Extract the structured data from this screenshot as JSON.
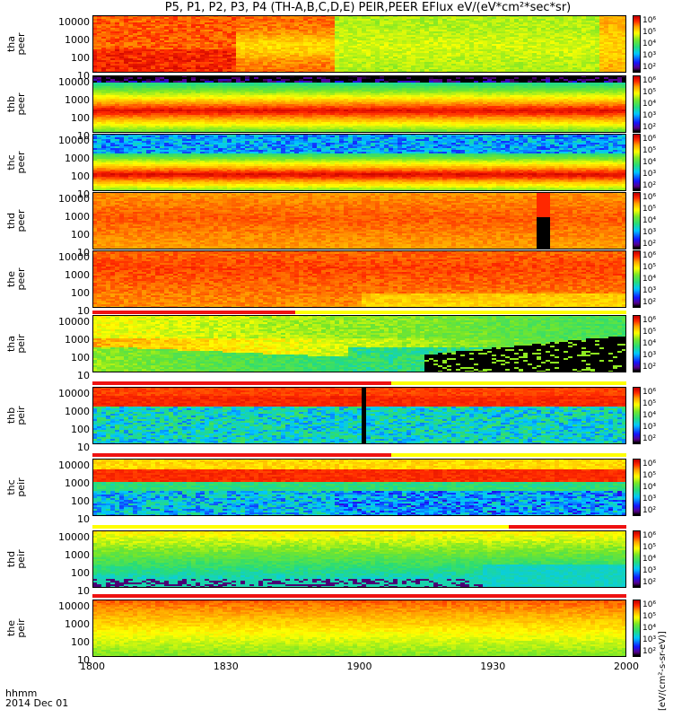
{
  "title": "P5, P1, P2, P3, P4 (TH-A,B,C,D,E) PEIR,PEER EFlux eV/(eV*cm²*sec*sr)",
  "footer": {
    "line1": "hhmm",
    "line2": "2014 Dec 01"
  },
  "colorbar_unit": "[eV/(cm²-s-sr-eV)]",
  "colors": {
    "black": "#000000",
    "blue": "#1a1aff",
    "cyan": "#00e0e0",
    "green": "#33dd33",
    "yellow": "#ffff00",
    "orange": "#ff9900",
    "red": "#ff2a00",
    "darkred": "#cc0000",
    "strip_red": "#ee1111",
    "strip_yellow": "#ffff00"
  },
  "chart_data": {
    "type": "heatmap",
    "xaxis": {
      "ticks": [
        "1800",
        "1830",
        "1900",
        "1930",
        "2000"
      ],
      "range_hhmm": [
        "1800",
        "2000"
      ]
    },
    "yaxis_log": true,
    "ytick_labels": [
      "10000",
      "1000",
      "100",
      "10"
    ],
    "colorbar_ticks": [
      "10⁶",
      "10⁵",
      "10⁴",
      "10³",
      "10²"
    ],
    "panels": [
      {
        "probe": "tha",
        "species": "peer",
        "label": "tha\npeer",
        "pattern": "peer_a"
      },
      {
        "probe": "thb",
        "species": "peer",
        "label": "thb\npeer",
        "pattern": "peer_b"
      },
      {
        "probe": "thc",
        "species": "peer",
        "label": "thc\npeer",
        "pattern": "peer_c"
      },
      {
        "probe": "thd",
        "species": "peer",
        "label": "thd\npeer",
        "pattern": "peer_d"
      },
      {
        "probe": "the",
        "species": "peer",
        "label": "the\npeer",
        "pattern": "peer_e"
      },
      {
        "probe": "tha",
        "species": "peir",
        "label": "tha\npeir",
        "pattern": "peir_a"
      },
      {
        "probe": "thb",
        "species": "peir",
        "label": "thb\npeir",
        "pattern": "peir_b"
      },
      {
        "probe": "thc",
        "species": "peir",
        "label": "thc\npeir",
        "pattern": "peir_c"
      },
      {
        "probe": "thd",
        "species": "peir",
        "label": "thd\npeir",
        "pattern": "peir_d"
      },
      {
        "probe": "the",
        "species": "peir",
        "label": "the\npeir",
        "pattern": "peir_e"
      }
    ]
  }
}
